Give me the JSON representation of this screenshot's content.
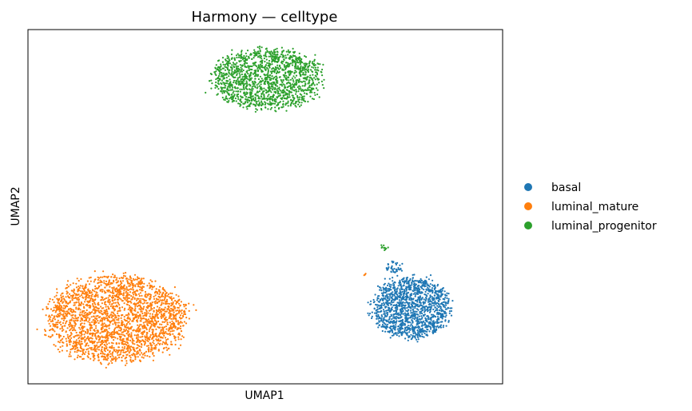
{
  "chart_data": {
    "type": "scatter",
    "title": "Harmony — celltype",
    "xlabel": "UMAP1",
    "ylabel": "UMAP2",
    "xlim": [
      0,
      100
    ],
    "ylim": [
      0,
      100
    ],
    "grid": false,
    "ticks": false,
    "legend": {
      "placement": "right",
      "entries": [
        {
          "name": "basal",
          "color": "#1f77b4"
        },
        {
          "name": "luminal_mature",
          "color": "#ff7f0e"
        },
        {
          "name": "luminal_progenitor",
          "color": "#2ca02c"
        }
      ]
    },
    "series": [
      {
        "name": "basal",
        "color": "#1f77b4",
        "clusters": [
          {
            "center": [
              80.7,
              21.5
            ],
            "spread": [
              8.0,
              8.5
            ],
            "n": 1400
          },
          {
            "center": [
              77.3,
              32.7
            ],
            "spread": [
              1.8,
              2.0
            ],
            "n": 40
          }
        ]
      },
      {
        "name": "luminal_mature",
        "color": "#ff7f0e",
        "clusters": [
          {
            "center": [
              18.6,
              18.3
            ],
            "spread": [
              14.5,
              12.0
            ],
            "n": 2400
          },
          {
            "center": [
              71.0,
              31.0
            ],
            "spread": [
              0.5,
              0.4
            ],
            "n": 4
          }
        ]
      },
      {
        "name": "luminal_progenitor",
        "color": "#2ca02c",
        "clusters": [
          {
            "center": [
              50.5,
              86.0
            ],
            "spread": [
              11.5,
              8.5
            ],
            "n": 1500
          },
          {
            "center": [
              75.0,
              38.5
            ],
            "spread": [
              1.2,
              0.8
            ],
            "n": 10
          }
        ]
      }
    ]
  }
}
